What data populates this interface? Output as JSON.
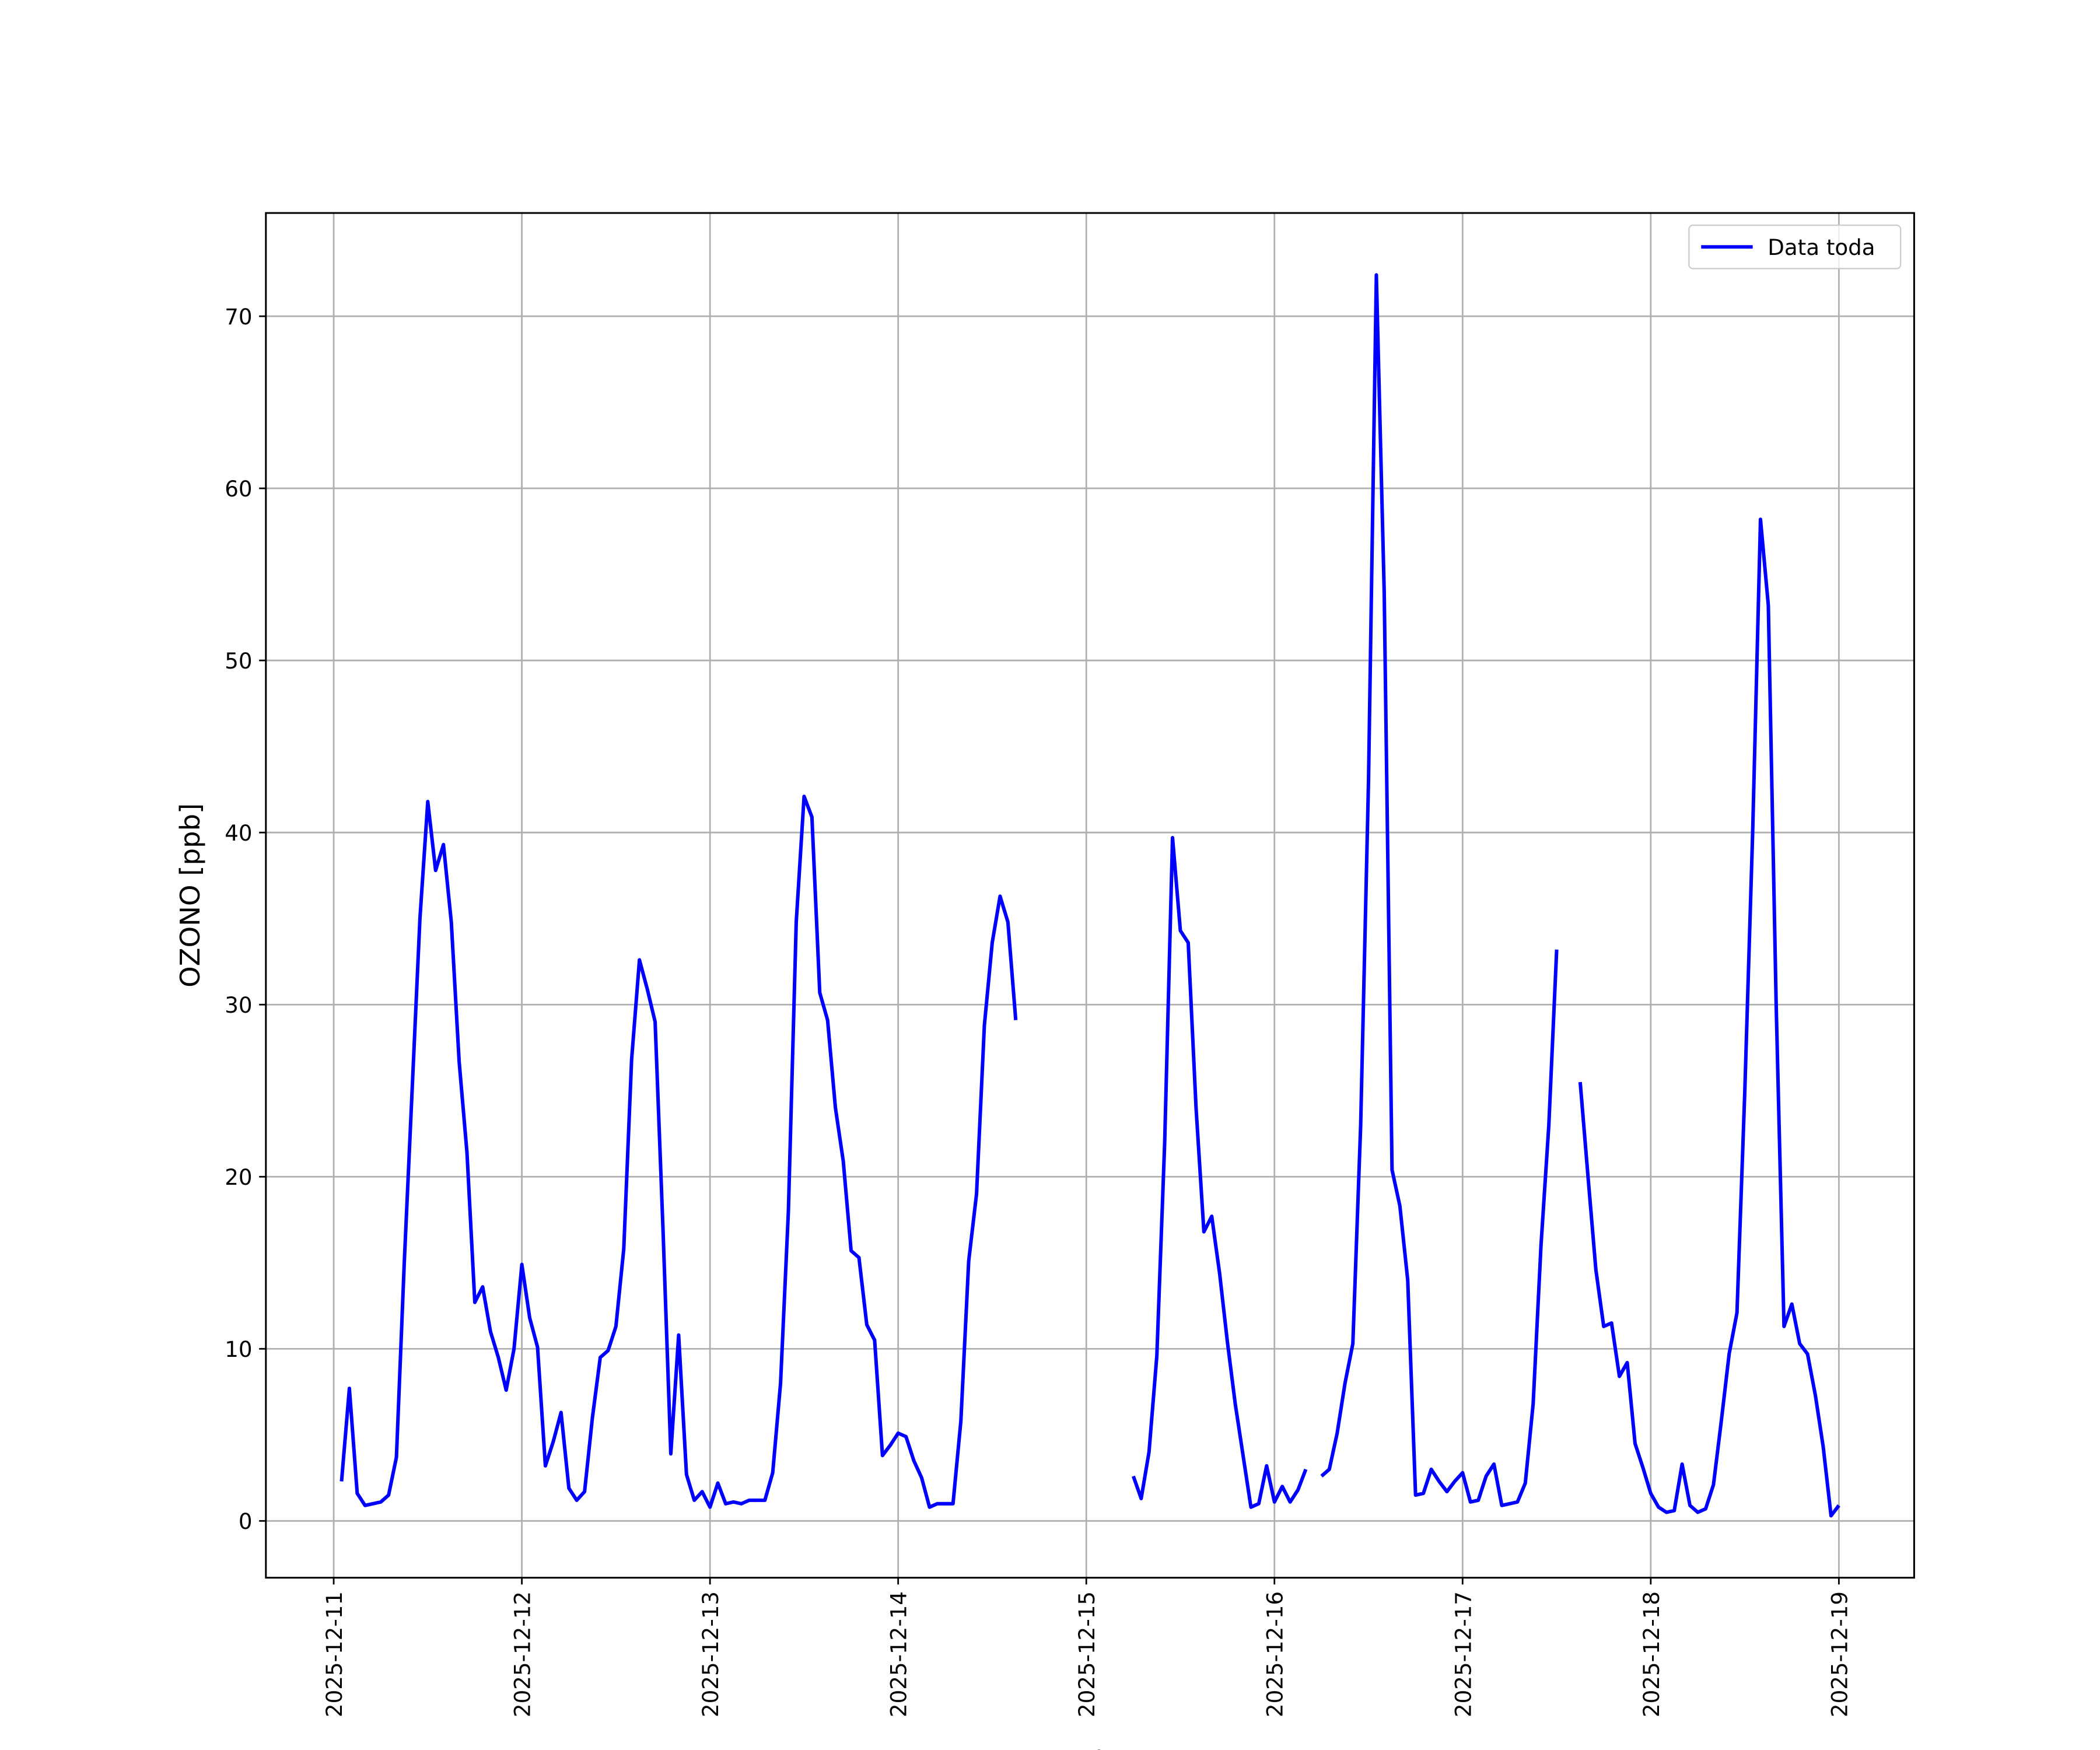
{
  "chart_data": {
    "type": "line",
    "x_label": "Fecha",
    "y_label": "OZONO [ppb]",
    "xlim": [
      "2025-12-10 15:21",
      "2025-12-19 09:36"
    ],
    "xticks": [
      "2025-12-11",
      "2025-12-12",
      "2025-12-13",
      "2025-12-14",
      "2025-12-15",
      "2025-12-16",
      "2025-12-17",
      "2025-12-18",
      "2025-12-19"
    ],
    "ylim": [
      -3.3,
      76.0
    ],
    "yticks": [
      0,
      10,
      20,
      30,
      40,
      50,
      60,
      70
    ],
    "grid": true,
    "legend": "upper right",
    "x": [
      "2025-12-11 01:00",
      "2025-12-11 02:00",
      "2025-12-11 03:00",
      "2025-12-11 04:00",
      "2025-12-11 05:00",
      "2025-12-11 06:00",
      "2025-12-11 07:00",
      "2025-12-11 08:00",
      "2025-12-11 09:00",
      "2025-12-11 10:00",
      "2025-12-11 11:00",
      "2025-12-11 12:00",
      "2025-12-11 13:00",
      "2025-12-11 14:00",
      "2025-12-11 15:00",
      "2025-12-11 16:00",
      "2025-12-11 17:00",
      "2025-12-11 18:00",
      "2025-12-11 19:00",
      "2025-12-11 20:00",
      "2025-12-11 21:00",
      "2025-12-11 22:00",
      "2025-12-11 23:00",
      "2025-12-12 00:00",
      "2025-12-12 01:00",
      "2025-12-12 02:00",
      "2025-12-12 03:00",
      "2025-12-12 04:00",
      "2025-12-12 05:00",
      "2025-12-12 06:00",
      "2025-12-12 07:00",
      "2025-12-12 08:00",
      "2025-12-12 09:00",
      "2025-12-12 10:00",
      "2025-12-12 11:00",
      "2025-12-12 12:00",
      "2025-12-12 13:00",
      "2025-12-12 14:00",
      "2025-12-12 15:00",
      "2025-12-12 16:00",
      "2025-12-12 17:00",
      "2025-12-12 18:00",
      "2025-12-12 19:00",
      "2025-12-12 20:00",
      "2025-12-12 21:00",
      "2025-12-12 22:00",
      "2025-12-12 23:00",
      "2025-12-13 00:00",
      "2025-12-13 01:00",
      "2025-12-13 02:00",
      "2025-12-13 03:00",
      "2025-12-13 04:00",
      "2025-12-13 05:00",
      "2025-12-13 06:00",
      "2025-12-13 07:00",
      "2025-12-13 08:00",
      "2025-12-13 09:00",
      "2025-12-13 10:00",
      "2025-12-13 11:00",
      "2025-12-13 12:00",
      "2025-12-13 13:00",
      "2025-12-13 14:00",
      "2025-12-13 15:00",
      "2025-12-13 16:00",
      "2025-12-13 17:00",
      "2025-12-13 18:00",
      "2025-12-13 19:00",
      "2025-12-13 20:00",
      "2025-12-13 21:00",
      "2025-12-13 22:00",
      "2025-12-13 23:00",
      "2025-12-14 00:00",
      "2025-12-14 01:00",
      "2025-12-14 02:00",
      "2025-12-14 03:00",
      "2025-12-14 04:00",
      "2025-12-14 05:00",
      "2025-12-14 06:00",
      "2025-12-14 07:00",
      "2025-12-14 08:00",
      "2025-12-14 09:00",
      "2025-12-14 10:00",
      "2025-12-14 11:00",
      "2025-12-14 12:00",
      "2025-12-14 13:00",
      "2025-12-14 14:00",
      "2025-12-14 15:00",
      "2025-12-14 16:00",
      "2025-12-15 06:00",
      "2025-12-15 07:00",
      "2025-12-15 08:00",
      "2025-12-15 09:00",
      "2025-12-15 10:00",
      "2025-12-15 11:00",
      "2025-12-15 12:00",
      "2025-12-15 13:00",
      "2025-12-15 14:00",
      "2025-12-15 15:00",
      "2025-12-15 16:00",
      "2025-12-15 17:00",
      "2025-12-15 18:00",
      "2025-12-15 19:00",
      "2025-12-15 20:00",
      "2025-12-15 21:00",
      "2025-12-15 22:00",
      "2025-12-15 23:00",
      "2025-12-16 00:00",
      "2025-12-16 01:00",
      "2025-12-16 02:00",
      "2025-12-16 03:00",
      "2025-12-16 04:00",
      "2025-12-16 05:00",
      "2025-12-16 06:00",
      "2025-12-16 07:00",
      "2025-12-16 08:00",
      "2025-12-16 09:00",
      "2025-12-16 10:00",
      "2025-12-16 11:00",
      "2025-12-16 12:00",
      "2025-12-16 13:00",
      "2025-12-16 14:00",
      "2025-12-16 15:00",
      "2025-12-16 16:00",
      "2025-12-16 17:00",
      "2025-12-16 18:00",
      "2025-12-16 19:00",
      "2025-12-16 20:00",
      "2025-12-16 21:00",
      "2025-12-16 22:00",
      "2025-12-16 23:00",
      "2025-12-17 00:00",
      "2025-12-17 01:00",
      "2025-12-17 02:00",
      "2025-12-17 03:00",
      "2025-12-17 04:00",
      "2025-12-17 05:00",
      "2025-12-17 06:00",
      "2025-12-17 07:00",
      "2025-12-17 08:00",
      "2025-12-17 09:00",
      "2025-12-17 10:00",
      "2025-12-17 11:00",
      "2025-12-17 12:00",
      "2025-12-17 13:00",
      "2025-12-17 15:00",
      "2025-12-17 16:00",
      "2025-12-17 17:00",
      "2025-12-17 18:00",
      "2025-12-17 19:00",
      "2025-12-17 20:00",
      "2025-12-17 21:00",
      "2025-12-17 22:00",
      "2025-12-17 23:00",
      "2025-12-18 00:00",
      "2025-12-18 01:00",
      "2025-12-18 02:00",
      "2025-12-18 03:00",
      "2025-12-18 04:00",
      "2025-12-18 05:00",
      "2025-12-18 06:00",
      "2025-12-18 07:00",
      "2025-12-18 08:00",
      "2025-12-18 09:00",
      "2025-12-18 10:00",
      "2025-12-18 11:00",
      "2025-12-18 12:00",
      "2025-12-18 13:00",
      "2025-12-18 14:00",
      "2025-12-18 15:00",
      "2025-12-18 16:00",
      "2025-12-18 17:00",
      "2025-12-18 18:00",
      "2025-12-18 19:00",
      "2025-12-18 20:00",
      "2025-12-18 21:00",
      "2025-12-18 22:00",
      "2025-12-18 23:00",
      "2025-12-19 00:00"
    ],
    "series": [
      {
        "name": "Data toda",
        "color": "#0000ff",
        "values": [
          2.3,
          7.7,
          1.6,
          0.9,
          1.0,
          1.1,
          1.5,
          3.7,
          15,
          25,
          35,
          41.8,
          37.8,
          39.3,
          34.8,
          26.7,
          21.4,
          12.7,
          13.6,
          11,
          9.5,
          7.6,
          10,
          14.9,
          11.8,
          10.1,
          3.2,
          4.6,
          6.3,
          1.9,
          1.2,
          1.7,
          6,
          9.5,
          9.9,
          11.3,
          15.8,
          26.8,
          32.6,
          30.9,
          29,
          17,
          3.9,
          10.8,
          2.7,
          1.2,
          1.7,
          0.8,
          2.2,
          1.0,
          1.1,
          1.0,
          1.2,
          1.2,
          1.2,
          2.8,
          8,
          18,
          34.8,
          42.1,
          40.9,
          30.7,
          29.1,
          24,
          20.9,
          15.7,
          15.3,
          11.4,
          10.5,
          3.8,
          4.4,
          5.1,
          4.9,
          3.5,
          2.5,
          0.8,
          1.0,
          1.0,
          1.0,
          5.8,
          15.1,
          19,
          28.8,
          33.6,
          36.3,
          34.8,
          29.1,
          null,
          2.6,
          1.3,
          4,
          9.6,
          22,
          39.7,
          34.3,
          33.6,
          24,
          16.8,
          17.7,
          14.4,
          10.4,
          6.8,
          3.8,
          0.8,
          1.0,
          3.2,
          1.1,
          2.0,
          1.1,
          1.8,
          3.0,
          null,
          2.6,
          3.0,
          5.1,
          8,
          10.3,
          23,
          43,
          72.4,
          54,
          20.4,
          18.3,
          14,
          1.5,
          1.6,
          3.0,
          2.3,
          1.7,
          2.3,
          2.8,
          1.1,
          1.2,
          2.6,
          3.3,
          0.9,
          1.0,
          1.1,
          2.2,
          6.8,
          16,
          23,
          33.2,
          null,
          25.5,
          20,
          14.6,
          11.3,
          11.5,
          8.4,
          9.2,
          4.5,
          3.1,
          1.6,
          0.8,
          0.5,
          0.6,
          3.3,
          0.9,
          0.5,
          0.7,
          2.1,
          5.8,
          9.7,
          12.1,
          25,
          40,
          58.2,
          53.2,
          30,
          11.3,
          12.6,
          10.3,
          9.7,
          7.3,
          4.3,
          0.3,
          0.9
        ]
      }
    ]
  }
}
